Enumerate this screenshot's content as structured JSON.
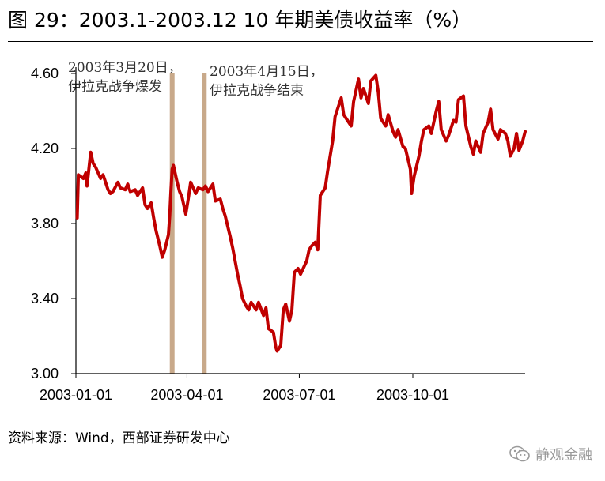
{
  "title": "图 29：2003.1-2003.12 10 年期美债收益率（%）",
  "source": "资料来源：Wind，西部证券研发中心",
  "watermark": {
    "icon": "wechat-icon",
    "text": "静观金融"
  },
  "colors": {
    "series": "#c00000",
    "event_bar": "#c8a98a"
  },
  "chart_data": {
    "type": "line",
    "title": "",
    "xlabel": "",
    "ylabel": "",
    "ylim": [
      3.0,
      4.6
    ],
    "yticks": [
      3.0,
      3.4,
      3.8,
      4.2,
      4.6
    ],
    "ytick_labels": [
      "3.00",
      "3.40",
      "3.80",
      "4.20",
      "4.60"
    ],
    "xlim": [
      "2003-01-01",
      "2003-12-31"
    ],
    "xticks": [
      "2003-01-01",
      "2003-04-01",
      "2003-07-01",
      "2003-10-01"
    ],
    "xtick_labels": [
      "2003-01-01",
      "2003-04-01",
      "2003-07-01",
      "2003-10-01"
    ],
    "grid": false,
    "series": [
      {
        "values": [
          [
            "2003-01-02",
            3.83
          ],
          [
            "2003-01-03",
            4.06
          ],
          [
            "2003-01-07",
            4.04
          ],
          [
            "2003-01-09",
            4.07
          ],
          [
            "2003-01-10",
            4.0
          ],
          [
            "2003-01-13",
            4.18
          ],
          [
            "2003-01-15",
            4.12
          ],
          [
            "2003-01-17",
            4.1
          ],
          [
            "2003-01-21",
            4.04
          ],
          [
            "2003-01-23",
            4.06
          ],
          [
            "2003-01-27",
            3.98
          ],
          [
            "2003-01-29",
            3.96
          ],
          [
            "2003-01-31",
            3.97
          ],
          [
            "2003-02-04",
            4.02
          ],
          [
            "2003-02-06",
            3.99
          ],
          [
            "2003-02-10",
            3.98
          ],
          [
            "2003-02-12",
            4.01
          ],
          [
            "2003-02-14",
            3.97
          ],
          [
            "2003-02-18",
            3.98
          ],
          [
            "2003-02-20",
            3.95
          ],
          [
            "2003-02-24",
            3.99
          ],
          [
            "2003-02-26",
            3.9
          ],
          [
            "2003-02-28",
            3.88
          ],
          [
            "2003-03-03",
            3.91
          ],
          [
            "2003-03-05",
            3.83
          ],
          [
            "2003-03-07",
            3.76
          ],
          [
            "2003-03-10",
            3.68
          ],
          [
            "2003-03-12",
            3.62
          ],
          [
            "2003-03-14",
            3.66
          ],
          [
            "2003-03-17",
            3.74
          ],
          [
            "2003-03-18",
            3.84
          ],
          [
            "2003-03-19",
            3.98
          ],
          [
            "2003-03-20",
            4.09
          ],
          [
            "2003-03-21",
            4.11
          ],
          [
            "2003-03-24",
            4.02
          ],
          [
            "2003-03-26",
            3.97
          ],
          [
            "2003-03-28",
            3.94
          ],
          [
            "2003-03-31",
            3.85
          ],
          [
            "2003-04-02",
            3.93
          ],
          [
            "2003-04-04",
            4.02
          ],
          [
            "2003-04-08",
            3.96
          ],
          [
            "2003-04-10",
            3.99
          ],
          [
            "2003-04-14",
            3.98
          ],
          [
            "2003-04-16",
            4.0
          ],
          [
            "2003-04-18",
            3.97
          ],
          [
            "2003-04-22",
            4.01
          ],
          [
            "2003-04-24",
            3.92
          ],
          [
            "2003-04-28",
            3.93
          ],
          [
            "2003-04-30",
            3.88
          ],
          [
            "2003-05-02",
            3.84
          ],
          [
            "2003-05-06",
            3.73
          ],
          [
            "2003-05-08",
            3.67
          ],
          [
            "2003-05-12",
            3.53
          ],
          [
            "2003-05-14",
            3.47
          ],
          [
            "2003-05-16",
            3.4
          ],
          [
            "2003-05-19",
            3.36
          ],
          [
            "2003-05-21",
            3.34
          ],
          [
            "2003-05-23",
            3.38
          ],
          [
            "2003-05-27",
            3.34
          ],
          [
            "2003-05-29",
            3.38
          ],
          [
            "2003-06-02",
            3.31
          ],
          [
            "2003-06-04",
            3.35
          ],
          [
            "2003-06-06",
            3.24
          ],
          [
            "2003-06-10",
            3.22
          ],
          [
            "2003-06-12",
            3.14
          ],
          [
            "2003-06-13",
            3.12
          ],
          [
            "2003-06-16",
            3.15
          ],
          [
            "2003-06-18",
            3.34
          ],
          [
            "2003-06-20",
            3.37
          ],
          [
            "2003-06-23",
            3.28
          ],
          [
            "2003-06-25",
            3.34
          ],
          [
            "2003-06-27",
            3.54
          ],
          [
            "2003-06-30",
            3.56
          ],
          [
            "2003-07-02",
            3.53
          ],
          [
            "2003-07-07",
            3.6
          ],
          [
            "2003-07-09",
            3.66
          ],
          [
            "2003-07-11",
            3.68
          ],
          [
            "2003-07-14",
            3.7
          ],
          [
            "2003-07-16",
            3.66
          ],
          [
            "2003-07-18",
            3.95
          ],
          [
            "2003-07-22",
            3.99
          ],
          [
            "2003-07-24",
            4.08
          ],
          [
            "2003-07-28",
            4.24
          ],
          [
            "2003-07-30",
            4.37
          ],
          [
            "2003-08-01",
            4.41
          ],
          [
            "2003-08-04",
            4.47
          ],
          [
            "2003-08-06",
            4.38
          ],
          [
            "2003-08-08",
            4.36
          ],
          [
            "2003-08-12",
            4.32
          ],
          [
            "2003-08-14",
            4.45
          ],
          [
            "2003-08-18",
            4.57
          ],
          [
            "2003-08-20",
            4.47
          ],
          [
            "2003-08-22",
            4.52
          ],
          [
            "2003-08-26",
            4.44
          ],
          [
            "2003-08-28",
            4.56
          ],
          [
            "2003-09-01",
            4.59
          ],
          [
            "2003-09-03",
            4.5
          ],
          [
            "2003-09-05",
            4.36
          ],
          [
            "2003-09-09",
            4.32
          ],
          [
            "2003-09-11",
            4.38
          ],
          [
            "2003-09-15",
            4.29
          ],
          [
            "2003-09-17",
            4.26
          ],
          [
            "2003-09-19",
            4.3
          ],
          [
            "2003-09-23",
            4.21
          ],
          [
            "2003-09-25",
            4.2
          ],
          [
            "2003-09-29",
            4.09
          ],
          [
            "2003-09-30",
            3.96
          ],
          [
            "2003-10-02",
            4.05
          ],
          [
            "2003-10-06",
            4.16
          ],
          [
            "2003-10-08",
            4.24
          ],
          [
            "2003-10-10",
            4.3
          ],
          [
            "2003-10-14",
            4.32
          ],
          [
            "2003-10-16",
            4.28
          ],
          [
            "2003-10-20",
            4.4
          ],
          [
            "2003-10-22",
            4.45
          ],
          [
            "2003-10-24",
            4.3
          ],
          [
            "2003-10-28",
            4.24
          ],
          [
            "2003-10-30",
            4.27
          ],
          [
            "2003-11-03",
            4.35
          ],
          [
            "2003-11-05",
            4.34
          ],
          [
            "2003-11-07",
            4.46
          ],
          [
            "2003-11-11",
            4.48
          ],
          [
            "2003-11-13",
            4.32
          ],
          [
            "2003-11-17",
            4.21
          ],
          [
            "2003-11-19",
            4.17
          ],
          [
            "2003-11-21",
            4.24
          ],
          [
            "2003-11-25",
            4.18
          ],
          [
            "2003-11-27",
            4.28
          ],
          [
            "2003-12-01",
            4.34
          ],
          [
            "2003-12-03",
            4.41
          ],
          [
            "2003-12-05",
            4.3
          ],
          [
            "2003-12-09",
            4.25
          ],
          [
            "2003-12-11",
            4.3
          ],
          [
            "2003-12-15",
            4.28
          ],
          [
            "2003-12-17",
            4.24
          ],
          [
            "2003-12-19",
            4.16
          ],
          [
            "2003-12-22",
            4.2
          ],
          [
            "2003-12-24",
            4.28
          ],
          [
            "2003-12-26",
            4.19
          ],
          [
            "2003-12-29",
            4.24
          ],
          [
            "2003-12-31",
            4.29
          ]
        ]
      }
    ],
    "events": [
      {
        "date": "2003-03-20",
        "label": [
          "2003年3月20日，",
          "伊拉克战争爆发"
        ]
      },
      {
        "date": "2003-04-15",
        "label": [
          "2003年4月15日，",
          "伊拉克战争结束"
        ]
      }
    ]
  }
}
